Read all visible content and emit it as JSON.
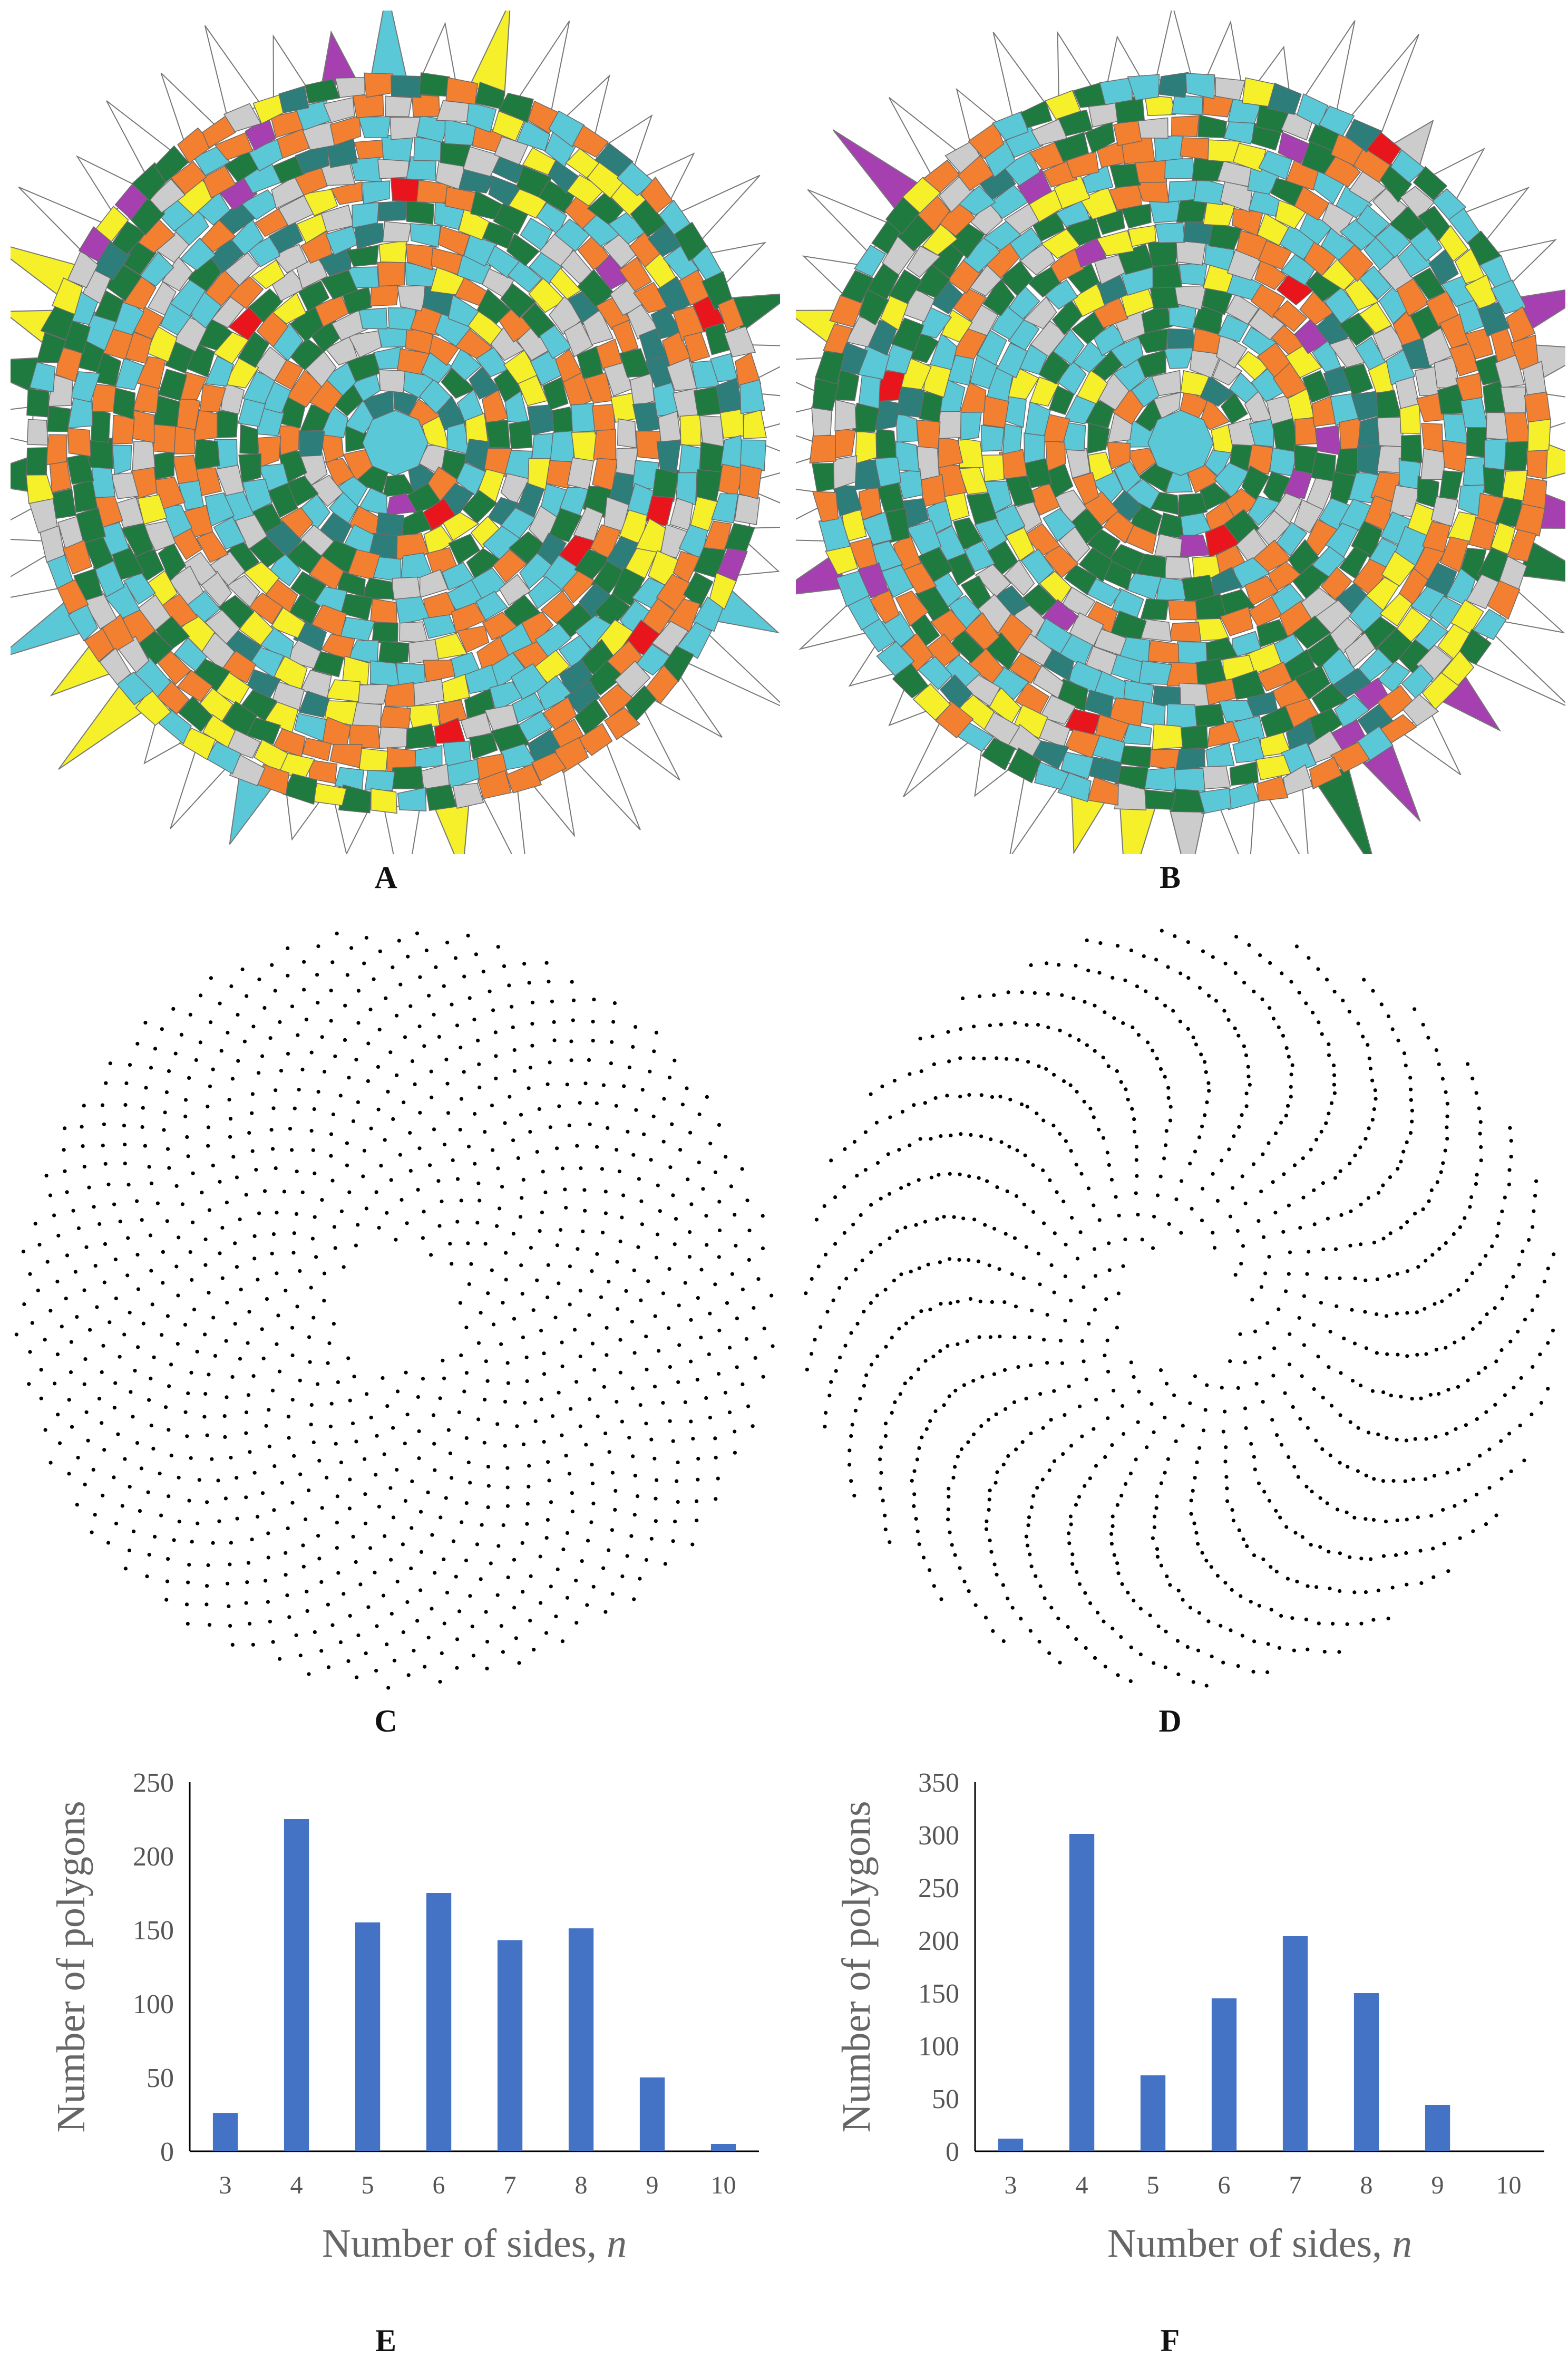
{
  "panels": {
    "A": {
      "label": "A",
      "palette": [
        "#f28030",
        "#5bc8d8",
        "#1e7a3e",
        "#cccccc",
        "#f5f02a",
        "#2d7d7a",
        "#a640b0",
        "#e8151c"
      ],
      "center_color": "#5bc8d8",
      "spike_colors": [
        "#5bc8d8",
        "#1e7a3e",
        "#f5f02a",
        "#a640b0"
      ]
    },
    "B": {
      "label": "B",
      "palette": [
        "#5bc8d8",
        "#f28030",
        "#1e7a3e",
        "#cccccc",
        "#f5f02a",
        "#2d7d7a",
        "#a640b0",
        "#e8151c"
      ],
      "center_color": "#5bc8d8",
      "spike_colors": [
        "#f5f02a",
        "#1e7a3e",
        "#cccccc",
        "#a640b0"
      ]
    },
    "C": {
      "label": "C",
      "dot_color": "#000000"
    },
    "D": {
      "label": "D",
      "dot_color": "#000000"
    },
    "E": {
      "label": "E"
    },
    "F": {
      "label": "F"
    }
  },
  "chart_data": [
    {
      "panel": "E",
      "type": "bar",
      "categories": [
        "3",
        "4",
        "5",
        "6",
        "7",
        "8",
        "9",
        "10"
      ],
      "values": [
        26,
        225,
        155,
        175,
        143,
        151,
        50,
        5
      ],
      "xlabel_main": "Number of sides, ",
      "xlabel_italic": "n",
      "ylabel": "Number of polygons",
      "ylim": [
        0,
        250
      ],
      "yticks": [
        0,
        50,
        100,
        150,
        200,
        250
      ],
      "bar_color": "#4472c4",
      "grid": false
    },
    {
      "panel": "F",
      "type": "bar",
      "categories": [
        "3",
        "4",
        "5",
        "6",
        "7",
        "8",
        "9",
        "10"
      ],
      "values": [
        12,
        301,
        72,
        145,
        204,
        150,
        44,
        0
      ],
      "xlabel_main": "Number of sides, ",
      "xlabel_italic": "n",
      "ylabel": "Number of polygons",
      "ylim": [
        0,
        350
      ],
      "yticks": [
        0,
        50,
        100,
        150,
        200,
        250,
        300,
        350
      ],
      "bar_color": "#4472c4",
      "grid": false
    }
  ]
}
